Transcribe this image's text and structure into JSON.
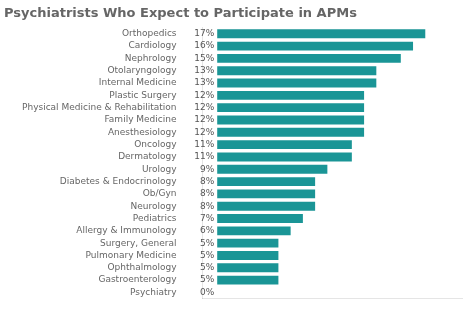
{
  "chart_data": {
    "type": "bar",
    "orientation": "horizontal",
    "title": "Psychiatrists Who Expect to Participate in APMs",
    "categories": [
      "Psychiatry",
      "Gastroenterology",
      "Ophthalmology",
      "Pulmonary Medicine",
      "Surgery, General",
      "Allergy & Immunology",
      "Pediatrics",
      "Neurology",
      "Ob/Gyn",
      "Diabetes & Endocrinology",
      "Urology",
      "Dermatology",
      "Oncology",
      "Anesthesiology",
      "Family Medicine",
      "Physical Medicine & Rehabilitation",
      "Plastic Surgery",
      "Internal Medicine",
      "Otolaryngology",
      "Nephrology",
      "Cardiology",
      "Orthopedics"
    ],
    "values": [
      0,
      5,
      5,
      5,
      5,
      6,
      7,
      8,
      8,
      8,
      9,
      11,
      11,
      12,
      12,
      12,
      12,
      13,
      13,
      15,
      16,
      17
    ],
    "value_labels": [
      "0%",
      "5%",
      "5%",
      "5%",
      "5%",
      "6%",
      "7%",
      "8%",
      "8%",
      "8%",
      "9%",
      "11%",
      "11%",
      "12%",
      "12%",
      "12%",
      "12%",
      "13%",
      "13%",
      "15%",
      "16%",
      "17%"
    ],
    "colors": [
      "#d63b6b",
      "#1a9596",
      "#1a9596",
      "#1a9596",
      "#1a9596",
      "#1a9596",
      "#1a9596",
      "#1a9596",
      "#1a9596",
      "#1a9596",
      "#1a9596",
      "#1a9596",
      "#1a9596",
      "#1a9596",
      "#1a9596",
      "#1a9596",
      "#1a9596",
      "#1a9596",
      "#1a9596",
      "#1a9596",
      "#1a9596",
      "#1a9596"
    ],
    "xlim": [
      -1.2,
      20
    ],
    "data_labels": true,
    "tick_labels": "y",
    "grid": false
  }
}
